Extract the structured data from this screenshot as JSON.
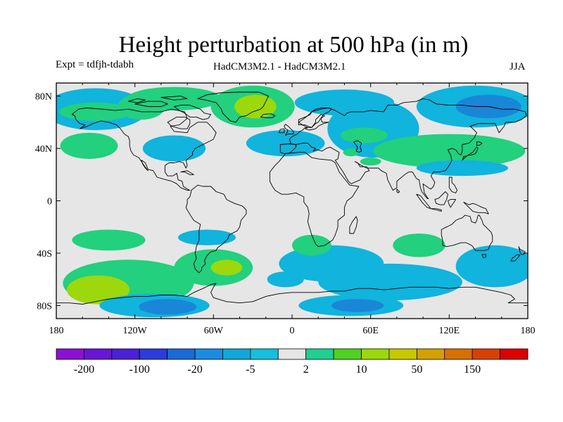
{
  "title": "Height perturbation at 500 hPa (in m)",
  "subtitle_left": "Expt = tdfjh-tdabh",
  "subtitle_center": "HadCM3M2.1 - HadCM3M2.1",
  "subtitle_right": "JJA",
  "map": {
    "projection": "cylindrical-equidistant",
    "lon_range": [
      -180,
      180
    ],
    "lat_range": [
      -90,
      90
    ],
    "ocean_land_background": "#e6e6e6",
    "lat_ticks": [
      {
        "value": 80,
        "label": "80N"
      },
      {
        "value": 40,
        "label": "40N"
      },
      {
        "value": 0,
        "label": "0"
      },
      {
        "value": -40,
        "label": "40S"
      },
      {
        "value": -80,
        "label": "80S"
      }
    ],
    "lon_ticks": [
      {
        "value": -180,
        "label": "180"
      },
      {
        "value": -120,
        "label": "120W"
      },
      {
        "value": -60,
        "label": "60W"
      },
      {
        "value": 0,
        "label": "0"
      },
      {
        "value": 60,
        "label": "60E"
      },
      {
        "value": 120,
        "label": "120E"
      },
      {
        "value": 180,
        "label": "180"
      }
    ]
  },
  "colorbar": {
    "colors": [
      "#8c0fd6",
      "#6a14d6",
      "#4a20d8",
      "#2a3cdc",
      "#1a6ad8",
      "#1a8ce0",
      "#10a8d8",
      "#14c0dc",
      "#e6e6e6",
      "#20d090",
      "#50d020",
      "#9cd80c",
      "#c8c800",
      "#d4a000",
      "#d87000",
      "#d84000",
      "#dc0000"
    ],
    "labels": [
      {
        "after_box": 1,
        "text": "-200"
      },
      {
        "after_box": 3,
        "text": "-100"
      },
      {
        "after_box": 5,
        "text": "-20"
      },
      {
        "after_box": 7,
        "text": "-5"
      },
      {
        "after_box": 9,
        "text": "2"
      },
      {
        "after_box": 11,
        "text": "10"
      },
      {
        "after_box": 13,
        "text": "50"
      },
      {
        "after_box": 15,
        "text": "150"
      }
    ]
  },
  "field_anomalies": [
    {
      "lon": -150,
      "lat": 70,
      "rlon": 40,
      "rlat": 16,
      "level": "negative_weak"
    },
    {
      "lon": -150,
      "lat": 68,
      "rlon": 28,
      "rlat": 7,
      "level": "positive_weak"
    },
    {
      "lon": -155,
      "lat": 42,
      "rlon": 22,
      "rlat": 10,
      "level": "positive_weak"
    },
    {
      "lon": -90,
      "lat": 40,
      "rlon": 24,
      "rlat": 10,
      "level": "negative_weak"
    },
    {
      "lon": -115,
      "lat": 72,
      "rlon": 18,
      "rlat": 10,
      "level": "positive_weak"
    },
    {
      "lon": -30,
      "lat": 72,
      "rlon": 32,
      "rlat": 16,
      "level": "positive_weak"
    },
    {
      "lon": -28,
      "lat": 72,
      "rlon": 16,
      "rlat": 9,
      "level": "positive_moderate"
    },
    {
      "lon": -90,
      "lat": 78,
      "rlon": 36,
      "rlat": 9,
      "level": "positive_weak"
    },
    {
      "lon": -5,
      "lat": 44,
      "rlon": 30,
      "rlat": 10,
      "level": "negative_weak"
    },
    {
      "lon": 40,
      "lat": 75,
      "rlon": 38,
      "rlat": 10,
      "level": "negative_weak"
    },
    {
      "lon": 62,
      "lat": 55,
      "rlon": 35,
      "rlat": 22,
      "level": "negative_weak"
    },
    {
      "lon": 55,
      "lat": 50,
      "rlon": 18,
      "rlat": 6,
      "level": "positive_weak"
    },
    {
      "lon": 60,
      "lat": 30,
      "rlon": 8,
      "rlat": 3,
      "level": "positive_weak"
    },
    {
      "lon": 140,
      "lat": 72,
      "rlon": 45,
      "rlat": 16,
      "level": "negative_weak"
    },
    {
      "lon": 150,
      "lat": 72,
      "rlon": 25,
      "rlat": 9,
      "level": "negative_moderate"
    },
    {
      "lon": 120,
      "lat": 38,
      "rlon": 58,
      "rlat": 13,
      "level": "positive_weak"
    },
    {
      "lon": 130,
      "lat": 25,
      "rlon": 35,
      "rlat": 6,
      "level": "negative_weak"
    },
    {
      "lon": -140,
      "lat": -30,
      "rlon": 28,
      "rlat": 8,
      "level": "positive_weak"
    },
    {
      "lon": -65,
      "lat": -28,
      "rlon": 22,
      "rlat": 6,
      "level": "negative_weak"
    },
    {
      "lon": -125,
      "lat": -63,
      "rlon": 50,
      "rlat": 18,
      "level": "positive_weak"
    },
    {
      "lon": -148,
      "lat": -68,
      "rlon": 24,
      "rlat": 11,
      "level": "positive_moderate"
    },
    {
      "lon": -60,
      "lat": -51,
      "rlon": 30,
      "rlat": 14,
      "level": "positive_weak"
    },
    {
      "lon": -50,
      "lat": -51,
      "rlon": 12,
      "rlat": 6,
      "level": "positive_moderate"
    },
    {
      "lon": -105,
      "lat": -80,
      "rlon": 42,
      "rlat": 9,
      "level": "negative_weak"
    },
    {
      "lon": -95,
      "lat": -81,
      "rlon": 22,
      "rlat": 6,
      "level": "negative_moderate"
    },
    {
      "lon": 30,
      "lat": -48,
      "rlon": 40,
      "rlat": 14,
      "level": "negative_weak"
    },
    {
      "lon": 75,
      "lat": -62,
      "rlon": 55,
      "rlat": 14,
      "level": "negative_weak"
    },
    {
      "lon": 45,
      "lat": -80,
      "rlon": 40,
      "rlat": 8,
      "level": "negative_weak"
    },
    {
      "lon": 50,
      "lat": -80,
      "rlon": 20,
      "rlat": 5,
      "level": "negative_moderate"
    },
    {
      "lon": 15,
      "lat": -34,
      "rlon": 15,
      "rlat": 8,
      "level": "positive_weak"
    },
    {
      "lon": 97,
      "lat": -34,
      "rlon": 20,
      "rlat": 9,
      "level": "positive_weak"
    },
    {
      "lon": 155,
      "lat": -50,
      "rlon": 30,
      "rlat": 16,
      "level": "negative_weak"
    },
    {
      "lon": 45,
      "lat": 37,
      "rlon": 6,
      "rlat": 3,
      "level": "positive_weak"
    },
    {
      "lon": -5,
      "lat": -60,
      "rlon": 14,
      "rlat": 6,
      "level": "negative_weak"
    }
  ],
  "level_colors": {
    "negative_weak": "#10b4dc",
    "negative_moderate": "#1a86d8",
    "positive_weak": "#22d07e",
    "positive_moderate": "#9cd80c"
  }
}
